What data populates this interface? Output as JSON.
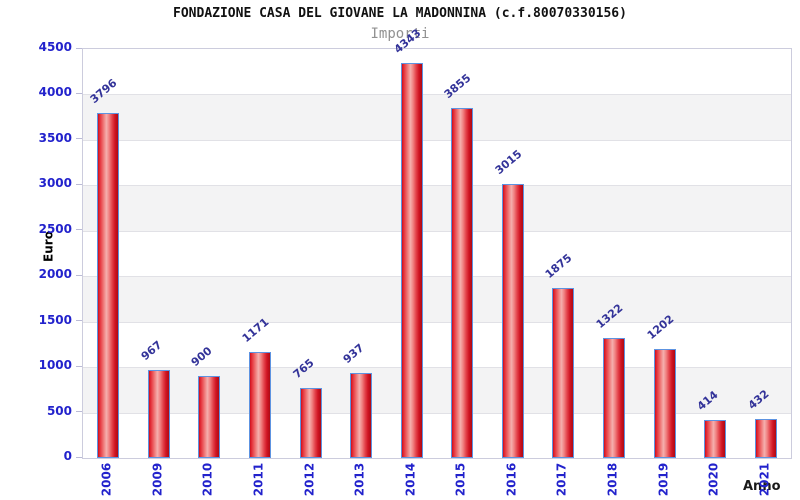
{
  "chart_data": {
    "type": "bar",
    "title": "FONDAZIONE CASA DEL GIOVANE LA MADONNINA (c.f.80070330156)",
    "subtitle": "Importi",
    "xlabel": "Anno",
    "ylabel": "Euro",
    "categories": [
      "2006",
      "2009",
      "2010",
      "2011",
      "2012",
      "2013",
      "2014",
      "2015",
      "2016",
      "2017",
      "2018",
      "2019",
      "2020",
      "2021"
    ],
    "values": [
      3796,
      967,
      900,
      1171,
      765,
      937,
      4343,
      3855,
      3015,
      1875,
      1322,
      1202,
      414,
      432
    ],
    "ylim": [
      0,
      4500
    ],
    "ytick_step": 500,
    "grid": "horizontal-bands-alternating",
    "legend": "none",
    "colors": {
      "bar_fill": "#e03040",
      "bar_highlight": "#f5b0ae",
      "bar_border": "#5d93e1",
      "value_label": "#333399",
      "axis_tick_text": "#2222cc",
      "band_gray": "#f3f3f4",
      "gridline": "#e1e1e6",
      "plot_border": "#ccccdd",
      "title_text": "#111111",
      "subtitle_text": "#919191",
      "background": "#ffffff"
    }
  }
}
